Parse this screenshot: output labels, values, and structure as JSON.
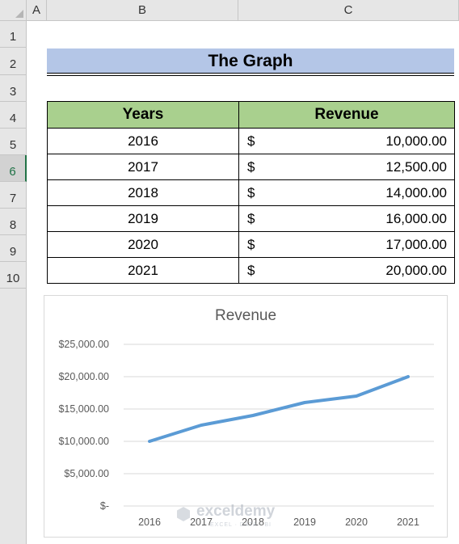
{
  "sheet": {
    "columns": [
      "A",
      "B",
      "C"
    ],
    "rows": [
      "1",
      "2",
      "3",
      "4",
      "5",
      "6",
      "7",
      "8",
      "9",
      "10"
    ],
    "active_row": "6"
  },
  "title": "The Graph",
  "table": {
    "headers": [
      "Years",
      "Revenue"
    ],
    "rows": [
      {
        "year": "2016",
        "currency": "$",
        "amount": "10,000.00"
      },
      {
        "year": "2017",
        "currency": "$",
        "amount": "12,500.00"
      },
      {
        "year": "2018",
        "currency": "$",
        "amount": "14,000.00"
      },
      {
        "year": "2019",
        "currency": "$",
        "amount": "16,000.00"
      },
      {
        "year": "2020",
        "currency": "$",
        "amount": "17,000.00"
      },
      {
        "year": "2021",
        "currency": "$",
        "amount": "20,000.00"
      }
    ]
  },
  "watermark": {
    "name": "exceldemy",
    "tagline": "EXCEL · DATA · BI"
  },
  "colors": {
    "header_fill": "#a9d08e",
    "title_fill": "#b4c6e7",
    "line": "#5b9bd5"
  },
  "chart_data": {
    "type": "line",
    "title": "Revenue",
    "categories": [
      "2016",
      "2017",
      "2018",
      "2019",
      "2020",
      "2021"
    ],
    "series": [
      {
        "name": "Revenue",
        "values": [
          10000,
          12500,
          14000,
          16000,
          17000,
          20000
        ]
      }
    ],
    "ylim": [
      0,
      25000
    ],
    "yticks": [
      0,
      5000,
      10000,
      15000,
      20000,
      25000
    ],
    "ytick_labels": [
      "$-",
      "$5,000.00",
      "$10,000.00",
      "$15,000.00",
      "$20,000.00",
      "$25,000.00"
    ],
    "grid": true,
    "legend": "none"
  }
}
